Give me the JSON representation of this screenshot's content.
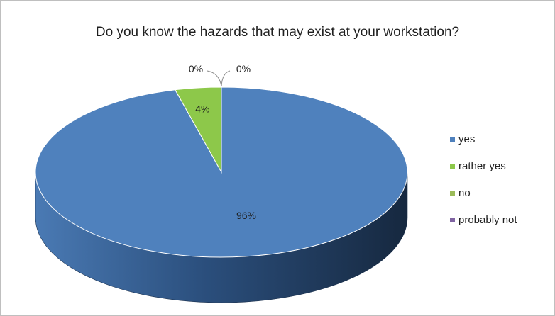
{
  "chart_data": {
    "type": "pie",
    "title": "Do you know the hazards that may exist at your workstation?",
    "categories": [
      "yes",
      "rather yes",
      "no",
      "probably not"
    ],
    "values": [
      96,
      4,
      0,
      0
    ],
    "labels": [
      "96%",
      "4%",
      "0%",
      "0%"
    ],
    "colors": [
      "#4f81bd",
      "#8dc84a",
      "#9bbb59",
      "#8064a2"
    ],
    "legend_position": "right",
    "three_d": true
  }
}
